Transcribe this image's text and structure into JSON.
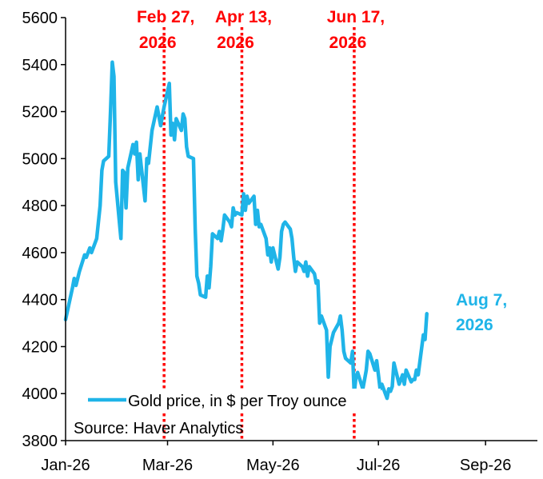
{
  "chart_data": {
    "type": "line",
    "title": "",
    "xlabel": "",
    "ylabel": "",
    "ylim": [
      3800,
      5600
    ],
    "y_ticks": [
      3800,
      4000,
      4200,
      4400,
      4600,
      4800,
      5000,
      5200,
      5400,
      5600
    ],
    "x_range": [
      "2026-01-01",
      "2026-10-01"
    ],
    "x_ticks": [
      {
        "date": "2026-01-01",
        "label": "Jan-26"
      },
      {
        "date": "2026-03-01",
        "label": "Mar-26"
      },
      {
        "date": "2026-05-01",
        "label": "May-26"
      },
      {
        "date": "2026-07-01",
        "label": "Jul-26"
      },
      {
        "date": "2026-09-01",
        "label": "Sep-26"
      }
    ],
    "grid": false,
    "legend": "bottom-left",
    "source": "Source: Haver Analytics",
    "colors": {
      "series": "#1fb4e8",
      "vlines": "#ff0000"
    },
    "series": [
      {
        "name": "Gold price, in $ per Troy ounce",
        "points": [
          [
            "2026-01-01",
            4315
          ],
          [
            "2026-01-05",
            4450
          ],
          [
            "2026-01-06",
            4490
          ],
          [
            "2026-01-07",
            4460
          ],
          [
            "2026-01-09",
            4520
          ],
          [
            "2026-01-12",
            4590
          ],
          [
            "2026-01-13",
            4580
          ],
          [
            "2026-01-15",
            4620
          ],
          [
            "2026-01-16",
            4600
          ],
          [
            "2026-01-19",
            4660
          ],
          [
            "2026-01-21",
            4800
          ],
          [
            "2026-01-22",
            4950
          ],
          [
            "2026-01-23",
            4990
          ],
          [
            "2026-01-26",
            5010
          ],
          [
            "2026-01-27",
            5200
          ],
          [
            "2026-01-28",
            5410
          ],
          [
            "2026-01-29",
            5350
          ],
          [
            "2026-01-30",
            4900
          ],
          [
            "2026-02-02",
            4660
          ],
          [
            "2026-02-03",
            4950
          ],
          [
            "2026-02-04",
            4940
          ],
          [
            "2026-02-05",
            4790
          ],
          [
            "2026-02-06",
            4960
          ],
          [
            "2026-02-09",
            5060
          ],
          [
            "2026-02-10",
            5020
          ],
          [
            "2026-02-11",
            5070
          ],
          [
            "2026-02-12",
            4910
          ],
          [
            "2026-02-13",
            5020
          ],
          [
            "2026-02-16",
            4820
          ],
          [
            "2026-02-17",
            5000
          ],
          [
            "2026-02-18",
            4980
          ],
          [
            "2026-02-19",
            5050
          ],
          [
            "2026-02-20",
            5120
          ],
          [
            "2026-02-23",
            5220
          ],
          [
            "2026-02-24",
            5180
          ],
          [
            "2026-02-25",
            5140
          ],
          [
            "2026-02-26",
            5180
          ],
          [
            "2026-02-27",
            5220
          ],
          [
            "2026-03-02",
            5320
          ],
          [
            "2026-03-03",
            5100
          ],
          [
            "2026-03-04",
            5150
          ],
          [
            "2026-03-05",
            5080
          ],
          [
            "2026-03-06",
            5170
          ],
          [
            "2026-03-09",
            5120
          ],
          [
            "2026-03-10",
            5190
          ],
          [
            "2026-03-11",
            5170
          ],
          [
            "2026-03-12",
            5050
          ],
          [
            "2026-03-13",
            5010
          ],
          [
            "2026-03-16",
            5000
          ],
          [
            "2026-03-17",
            4700
          ],
          [
            "2026-03-18",
            4500
          ],
          [
            "2026-03-19",
            4470
          ],
          [
            "2026-03-20",
            4420
          ],
          [
            "2026-03-23",
            4410
          ],
          [
            "2026-03-24",
            4500
          ],
          [
            "2026-03-25",
            4450
          ],
          [
            "2026-03-26",
            4540
          ],
          [
            "2026-03-27",
            4680
          ],
          [
            "2026-03-30",
            4660
          ],
          [
            "2026-03-31",
            4690
          ],
          [
            "2026-04-01",
            4650
          ],
          [
            "2026-04-02",
            4700
          ],
          [
            "2026-04-03",
            4760
          ],
          [
            "2026-04-06",
            4730
          ],
          [
            "2026-04-07",
            4710
          ],
          [
            "2026-04-08",
            4790
          ],
          [
            "2026-04-09",
            4760
          ],
          [
            "2026-04-10",
            4770
          ],
          [
            "2026-04-13",
            4760
          ],
          [
            "2026-04-14",
            4850
          ],
          [
            "2026-04-15",
            4780
          ],
          [
            "2026-04-16",
            4840
          ],
          [
            "2026-04-17",
            4810
          ],
          [
            "2026-04-20",
            4840
          ],
          [
            "2026-04-21",
            4720
          ],
          [
            "2026-04-22",
            4780
          ],
          [
            "2026-04-23",
            4710
          ],
          [
            "2026-04-24",
            4720
          ],
          [
            "2026-04-27",
            4660
          ],
          [
            "2026-04-28",
            4590
          ],
          [
            "2026-04-29",
            4620
          ],
          [
            "2026-04-30",
            4560
          ],
          [
            "2026-05-01",
            4620
          ],
          [
            "2026-05-04",
            4530
          ],
          [
            "2026-05-05",
            4580
          ],
          [
            "2026-05-06",
            4690
          ],
          [
            "2026-05-07",
            4720
          ],
          [
            "2026-05-08",
            4730
          ],
          [
            "2026-05-11",
            4700
          ],
          [
            "2026-05-12",
            4660
          ],
          [
            "2026-05-13",
            4580
          ],
          [
            "2026-05-14",
            4520
          ],
          [
            "2026-05-15",
            4560
          ],
          [
            "2026-05-18",
            4540
          ],
          [
            "2026-05-19",
            4520
          ],
          [
            "2026-05-20",
            4560
          ],
          [
            "2026-05-21",
            4500
          ],
          [
            "2026-05-22",
            4540
          ],
          [
            "2026-05-25",
            4510
          ],
          [
            "2026-05-26",
            4470
          ],
          [
            "2026-05-27",
            4480
          ],
          [
            "2026-05-28",
            4300
          ],
          [
            "2026-05-29",
            4330
          ],
          [
            "2026-06-01",
            4270
          ],
          [
            "2026-06-02",
            4070
          ],
          [
            "2026-06-03",
            4200
          ],
          [
            "2026-06-05",
            4260
          ],
          [
            "2026-06-08",
            4300
          ],
          [
            "2026-06-09",
            4330
          ],
          [
            "2026-06-10",
            4270
          ],
          [
            "2026-06-11",
            4180
          ],
          [
            "2026-06-12",
            4150
          ],
          [
            "2026-06-15",
            4130
          ],
          [
            "2026-06-16",
            4180
          ],
          [
            "2026-06-17",
            4000
          ],
          [
            "2026-06-18",
            4070
          ],
          [
            "2026-06-19",
            4090
          ],
          [
            "2026-06-22",
            4020
          ],
          [
            "2026-06-23",
            4060
          ],
          [
            "2026-06-24",
            4100
          ],
          [
            "2026-06-25",
            4180
          ],
          [
            "2026-06-26",
            4170
          ],
          [
            "2026-06-29",
            4100
          ],
          [
            "2026-06-30",
            4140
          ],
          [
            "2026-07-01",
            4080
          ],
          [
            "2026-07-02",
            4020
          ],
          [
            "2026-07-03",
            4040
          ],
          [
            "2026-07-06",
            3980
          ],
          [
            "2026-07-07",
            4020
          ],
          [
            "2026-07-08",
            4010
          ],
          [
            "2026-07-09",
            4030
          ],
          [
            "2026-07-10",
            4130
          ],
          [
            "2026-07-13",
            4040
          ],
          [
            "2026-07-14",
            4060
          ],
          [
            "2026-07-15",
            4080
          ],
          [
            "2026-07-16",
            4040
          ],
          [
            "2026-07-17",
            4100
          ],
          [
            "2026-07-20",
            4050
          ],
          [
            "2026-07-21",
            4060
          ],
          [
            "2026-07-22",
            4060
          ],
          [
            "2026-07-23",
            4100
          ],
          [
            "2026-07-24",
            4080
          ],
          [
            "2026-07-27",
            4250
          ],
          [
            "2026-07-28",
            4230
          ],
          [
            "2026-07-29",
            4340
          ]
        ]
      }
    ],
    "vlines": [
      {
        "date": "2026-02-27",
        "label_line1": "Feb 27,",
        "label_line2": "2026"
      },
      {
        "date": "2026-04-13",
        "label_line1": "Apr 13,",
        "label_line2": "2026"
      },
      {
        "date": "2026-06-17",
        "label_line1": "Jun 17,",
        "label_line2": "2026"
      }
    ],
    "end_annotation": {
      "label_line1": "Aug 7,",
      "label_line2": "2026"
    }
  }
}
